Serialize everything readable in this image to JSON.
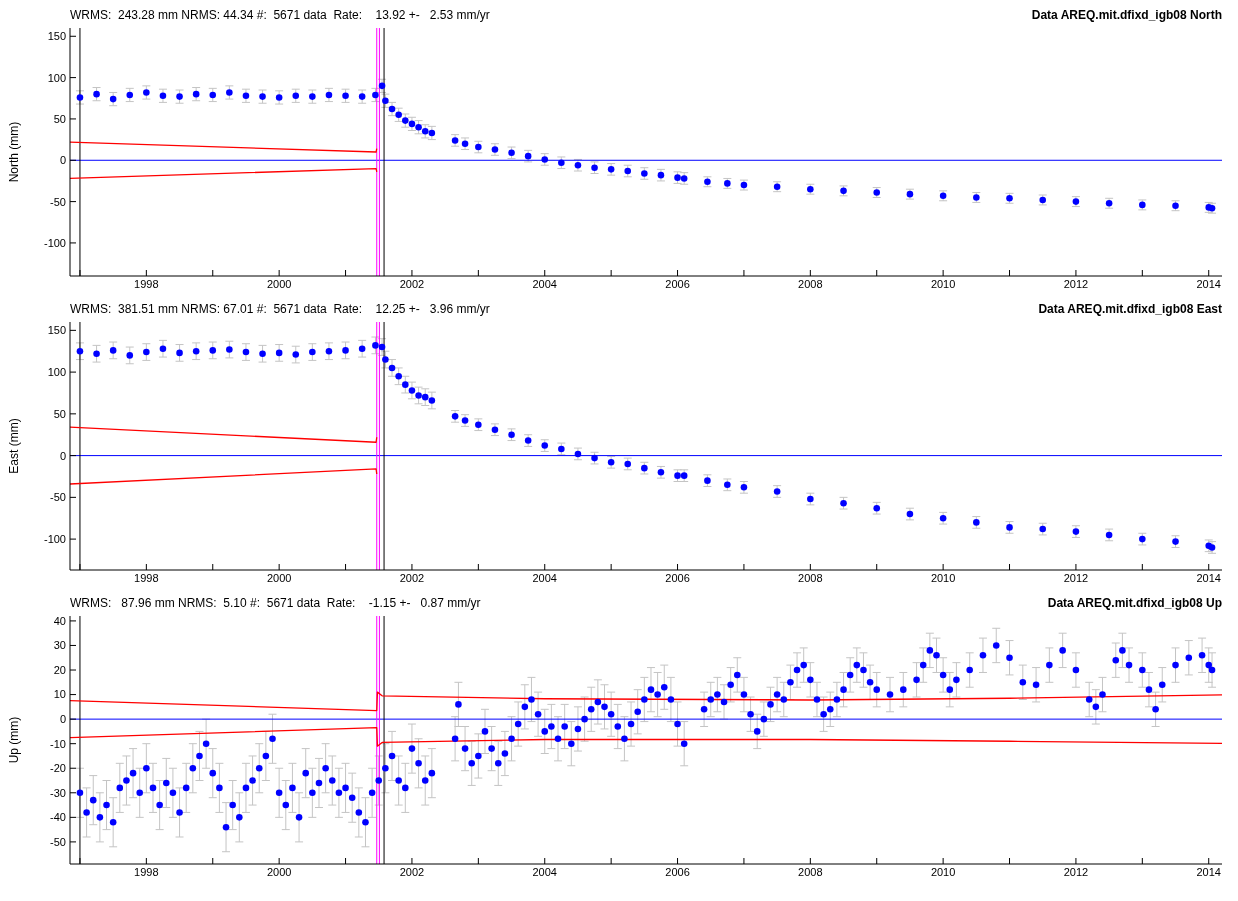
{
  "chart_data": [
    {
      "type": "scatter",
      "title": "Data AREQ.mit.dfixd_igb08 North",
      "subtitle": "WRMS:  243.28 mm NRMS: 44.34 #:  5671 data  Rate:    13.92 +-   2.53 mm/yr",
      "ylabel": "North (mm)",
      "xlim": [
        1996.85,
        2014.2
      ],
      "xticks": [
        {
          "value": 1997,
          "label": null
        },
        1998,
        {
          "value": 1999,
          "label": null
        },
        2000,
        {
          "value": 2001,
          "label": null
        },
        2002,
        {
          "value": 2003,
          "label": null
        },
        2004,
        {
          "value": 2005,
          "label": null
        },
        2006,
        {
          "value": 2007,
          "label": null
        },
        2008,
        {
          "value": 2009,
          "label": null
        },
        2010,
        {
          "value": 2011,
          "label": null
        },
        2012,
        {
          "value": 2013,
          "label": null
        },
        2014
      ],
      "ylim": [
        -140,
        160
      ],
      "yticks": [
        -100,
        -50,
        0,
        50,
        100,
        150
      ],
      "series": [
        {
          "color": "#0000ff",
          "x": [
            1997.0,
            1997.25,
            1997.5,
            1997.75,
            1998.0,
            1998.25,
            1998.5,
            1998.75,
            1999.0,
            1999.25,
            1999.5,
            1999.75,
            2000.0,
            2000.25,
            2000.5,
            2000.75,
            2001.0,
            2001.25,
            2001.45,
            2001.55,
            2001.6,
            2001.7,
            2001.8,
            2001.9,
            2002.0,
            2002.1,
            2002.2,
            2002.3,
            2002.65,
            2002.8,
            2003.0,
            2003.25,
            2003.5,
            2003.75,
            2004.0,
            2004.25,
            2004.5,
            2004.75,
            2005.0,
            2005.25,
            2005.5,
            2005.75,
            2006.0,
            2006.1,
            2006.45,
            2006.75,
            2007.0,
            2007.5,
            2008.0,
            2008.5,
            2009.0,
            2009.5,
            2010.0,
            2010.5,
            2011.0,
            2011.5,
            2012.0,
            2012.5,
            2013.0,
            2013.5,
            2014.0,
            2014.05
          ],
          "values": [
            76,
            80,
            74,
            79,
            82,
            78,
            77,
            80,
            79,
            82,
            78,
            77,
            76,
            78,
            77,
            79,
            78,
            77,
            79,
            90,
            72,
            62,
            55,
            48,
            44,
            40,
            35,
            33,
            24,
            20,
            16,
            13,
            9,
            5,
            1,
            -3,
            -6,
            -9,
            -11,
            -13,
            -16,
            -18,
            -21,
            -22,
            -26,
            -28,
            -30,
            -32,
            -35,
            -37,
            -39,
            -41,
            -43,
            -45,
            -46,
            -48,
            -50,
            -52,
            -54,
            -55,
            -57,
            -58
          ],
          "errors": [
            8,
            8,
            8,
            8,
            8,
            8,
            8,
            8,
            8,
            8,
            8,
            8,
            8,
            8,
            8,
            8,
            8,
            8,
            8,
            8,
            8,
            8,
            8,
            8,
            8,
            8,
            8,
            8,
            7,
            7,
            7,
            7,
            7,
            7,
            7,
            7,
            7,
            7,
            7,
            7,
            7,
            7,
            7,
            7,
            6,
            6,
            6,
            6,
            6,
            6,
            6,
            6,
            6,
            6,
            6,
            6,
            6,
            6,
            6,
            6,
            6,
            6
          ],
          "marker": "circle"
        },
        {
          "type": "line",
          "color": "#ff0000",
          "x": [
            1996.85,
            2001.46,
            2001.47
          ],
          "values": [
            22,
            10,
            14
          ]
        },
        {
          "type": "line",
          "color": "#ff0000",
          "x": [
            1996.85,
            2001.46,
            2001.47
          ],
          "values": [
            -22,
            -10,
            -14
          ]
        }
      ],
      "ref_lines": [
        {
          "axis": "y",
          "value": 0,
          "color": "#0000ff"
        },
        {
          "axis": "x",
          "value": 1997.0,
          "color": "#000000"
        },
        {
          "axis": "x",
          "value": 2001.47,
          "color": "#ff00ff"
        },
        {
          "axis": "x",
          "value": 2001.51,
          "color": "#ff00ff"
        },
        {
          "axis": "x",
          "value": 2001.58,
          "color": "#000000"
        }
      ]
    },
    {
      "type": "scatter",
      "title": "Data AREQ.mit.dfixd_igb08 East",
      "subtitle": "WRMS:  381.51 mm NRMS: 67.01 #:  5671 data  Rate:    12.25 +-   3.96 mm/yr",
      "ylabel": "East  (mm)",
      "xlim": [
        1996.85,
        2014.2
      ],
      "xticks": [
        {
          "value": 1997,
          "label": null
        },
        1998,
        {
          "value": 1999,
          "label": null
        },
        2000,
        {
          "value": 2001,
          "label": null
        },
        2002,
        {
          "value": 2003,
          "label": null
        },
        2004,
        {
          "value": 2005,
          "label": null
        },
        2006,
        {
          "value": 2007,
          "label": null
        },
        2008,
        {
          "value": 2009,
          "label": null
        },
        2010,
        {
          "value": 2011,
          "label": null
        },
        2012,
        {
          "value": 2013,
          "label": null
        },
        2014
      ],
      "ylim": [
        -137,
        160
      ],
      "yticks": [
        -100,
        -50,
        0,
        50,
        100,
        150
      ],
      "series": [
        {
          "color": "#0000ff",
          "x": [
            1997.0,
            1997.25,
            1997.5,
            1997.75,
            1998.0,
            1998.25,
            1998.5,
            1998.75,
            1999.0,
            1999.25,
            1999.5,
            1999.75,
            2000.0,
            2000.25,
            2000.5,
            2000.75,
            2001.0,
            2001.25,
            2001.45,
            2001.55,
            2001.6,
            2001.7,
            2001.8,
            2001.9,
            2002.0,
            2002.1,
            2002.2,
            2002.3,
            2002.65,
            2002.8,
            2003.0,
            2003.25,
            2003.5,
            2003.75,
            2004.0,
            2004.25,
            2004.5,
            2004.75,
            2005.0,
            2005.25,
            2005.5,
            2005.75,
            2006.0,
            2006.1,
            2006.45,
            2006.75,
            2007.0,
            2007.5,
            2008.0,
            2008.5,
            2009.0,
            2009.5,
            2010.0,
            2010.5,
            2011.0,
            2011.5,
            2012.0,
            2012.5,
            2013.0,
            2013.5,
            2014.0,
            2014.05
          ],
          "values": [
            125,
            122,
            126,
            120,
            124,
            128,
            123,
            125,
            126,
            127,
            124,
            122,
            123,
            121,
            124,
            125,
            126,
            128,
            132,
            130,
            115,
            105,
            95,
            85,
            78,
            72,
            70,
            66,
            47,
            42,
            37,
            31,
            25,
            18,
            12,
            8,
            2,
            -3,
            -8,
            -10,
            -15,
            -20,
            -24,
            -24,
            -30,
            -35,
            -38,
            -43,
            -52,
            -57,
            -63,
            -70,
            -75,
            -80,
            -86,
            -88,
            -91,
            -95,
            -100,
            -103,
            -108,
            -110
          ],
          "errors": [
            10,
            10,
            10,
            10,
            10,
            10,
            10,
            10,
            10,
            10,
            10,
            10,
            10,
            10,
            10,
            10,
            10,
            10,
            10,
            10,
            10,
            10,
            10,
            10,
            10,
            10,
            10,
            10,
            7,
            7,
            7,
            7,
            7,
            7,
            7,
            7,
            7,
            7,
            7,
            7,
            7,
            7,
            7,
            7,
            7,
            7,
            7,
            7,
            7,
            7,
            7,
            7,
            7,
            7,
            7,
            7,
            7,
            7,
            7,
            7,
            7,
            7
          ],
          "marker": "circle"
        },
        {
          "type": "line",
          "color": "#ff0000",
          "x": [
            1996.85,
            2001.46,
            2001.47
          ],
          "values": [
            34,
            16,
            22
          ]
        },
        {
          "type": "line",
          "color": "#ff0000",
          "x": [
            1996.85,
            2001.46,
            2001.47
          ],
          "values": [
            -34,
            -16,
            -22
          ]
        }
      ],
      "ref_lines": [
        {
          "axis": "y",
          "value": 0,
          "color": "#0000ff"
        },
        {
          "axis": "x",
          "value": 1997.0,
          "color": "#000000"
        },
        {
          "axis": "x",
          "value": 2001.47,
          "color": "#ff00ff"
        },
        {
          "axis": "x",
          "value": 2001.51,
          "color": "#ff00ff"
        },
        {
          "axis": "x",
          "value": 2001.58,
          "color": "#000000"
        }
      ]
    },
    {
      "type": "scatter",
      "title": "Data AREQ.mit.dfixd_igb08 Up",
      "subtitle": "WRMS:   87.96 mm NRMS:  5.10 #:  5671 data  Rate:    -1.15 +-   0.87 mm/yr",
      "ylabel": "Up  (mm)",
      "xlim": [
        1996.85,
        2014.2
      ],
      "xticks": [
        {
          "value": 1997,
          "label": null
        },
        1998,
        {
          "value": 1999,
          "label": null
        },
        2000,
        {
          "value": 2001,
          "label": null
        },
        2002,
        {
          "value": 2003,
          "label": null
        },
        2004,
        {
          "value": 2005,
          "label": null
        },
        2006,
        {
          "value": 2007,
          "label": null
        },
        2008,
        {
          "value": 2009,
          "label": null
        },
        2010,
        {
          "value": 2011,
          "label": null
        },
        2012,
        {
          "value": 2013,
          "label": null
        },
        2014
      ],
      "ylim": [
        -59,
        42
      ],
      "yticks": [
        -50,
        -40,
        -30,
        -20,
        -10,
        0,
        10,
        20,
        30,
        40
      ],
      "series": [
        {
          "color": "#0000ff",
          "x": [
            1997.0,
            1997.1,
            1997.2,
            1997.3,
            1997.4,
            1997.5,
            1997.6,
            1997.7,
            1997.8,
            1997.9,
            1998.0,
            1998.1,
            1998.2,
            1998.3,
            1998.4,
            1998.5,
            1998.6,
            1998.7,
            1998.8,
            1998.9,
            1999.0,
            1999.1,
            1999.2,
            1999.3,
            1999.4,
            1999.5,
            1999.6,
            1999.7,
            1999.8,
            1999.9,
            2000.0,
            2000.1,
            2000.2,
            2000.3,
            2000.4,
            2000.5,
            2000.6,
            2000.7,
            2000.8,
            2000.9,
            2001.0,
            2001.1,
            2001.2,
            2001.3,
            2001.4,
            2001.5,
            2001.6,
            2001.7,
            2001.8,
            2001.9,
            2002.0,
            2002.1,
            2002.2,
            2002.3,
            2002.65,
            2002.7,
            2002.8,
            2002.9,
            2003.0,
            2003.1,
            2003.2,
            2003.3,
            2003.4,
            2003.5,
            2003.6,
            2003.7,
            2003.8,
            2003.9,
            2004.0,
            2004.1,
            2004.2,
            2004.3,
            2004.4,
            2004.5,
            2004.6,
            2004.7,
            2004.8,
            2004.9,
            2005.0,
            2005.1,
            2005.2,
            2005.3,
            2005.4,
            2005.5,
            2005.6,
            2005.7,
            2005.8,
            2005.9,
            2006.0,
            2006.1,
            2006.4,
            2006.5,
            2006.6,
            2006.7,
            2006.8,
            2006.9,
            2007.0,
            2007.1,
            2007.2,
            2007.3,
            2007.4,
            2007.5,
            2007.6,
            2007.7,
            2007.8,
            2007.9,
            2008.0,
            2008.1,
            2008.2,
            2008.3,
            2008.4,
            2008.5,
            2008.6,
            2008.7,
            2008.8,
            2008.9,
            2009.0,
            2009.2,
            2009.4,
            2009.6,
            2009.7,
            2009.8,
            2009.9,
            2010.0,
            2010.1,
            2010.2,
            2010.4,
            2010.6,
            2010.8,
            2011.0,
            2011.2,
            2011.4,
            2011.6,
            2011.8,
            2012.0,
            2012.2,
            2012.3,
            2012.4,
            2012.6,
            2012.7,
            2012.8,
            2013.0,
            2013.1,
            2013.2,
            2013.3,
            2013.5,
            2013.7,
            2013.9,
            2014.0,
            2014.05
          ],
          "values": [
            -30,
            -38,
            -33,
            -40,
            -35,
            -42,
            -28,
            -25,
            -22,
            -30,
            -20,
            -28,
            -35,
            -26,
            -30,
            -38,
            -28,
            -20,
            -15,
            -10,
            -22,
            -28,
            -44,
            -35,
            -40,
            -28,
            -25,
            -20,
            -15,
            -8,
            -30,
            -35,
            -28,
            -40,
            -22,
            -30,
            -26,
            -20,
            -25,
            -30,
            -28,
            -32,
            -38,
            -42,
            -30,
            -25,
            -20,
            -15,
            -25,
            -28,
            -12,
            -18,
            -25,
            -22,
            -8,
            6,
            -12,
            -18,
            -15,
            -5,
            -12,
            -18,
            -14,
            -8,
            -2,
            5,
            8,
            2,
            -5,
            -3,
            -8,
            -3,
            -10,
            -4,
            0,
            4,
            7,
            5,
            2,
            -3,
            -8,
            -2,
            3,
            8,
            12,
            10,
            13,
            8,
            -2,
            -10,
            4,
            8,
            10,
            7,
            14,
            18,
            10,
            2,
            -5,
            0,
            6,
            10,
            8,
            15,
            20,
            22,
            16,
            8,
            2,
            4,
            8,
            12,
            18,
            22,
            20,
            15,
            12,
            10,
            12,
            16,
            22,
            28,
            26,
            18,
            12,
            16,
            20,
            26,
            30,
            25,
            15,
            14,
            22,
            28,
            20,
            8,
            5,
            10,
            24,
            28,
            22,
            20,
            12,
            4,
            14,
            22,
            25,
            26,
            22,
            20
          ],
          "errors": [
            10,
            10,
            10,
            10,
            10,
            10,
            10,
            10,
            10,
            10,
            10,
            10,
            10,
            10,
            10,
            10,
            10,
            10,
            10,
            10,
            10,
            10,
            10,
            10,
            10,
            10,
            10,
            10,
            10,
            10,
            10,
            10,
            10,
            10,
            10,
            10,
            10,
            10,
            10,
            10,
            10,
            10,
            10,
            10,
            10,
            10,
            10,
            10,
            10,
            10,
            10,
            10,
            10,
            10,
            9,
            9,
            9,
            9,
            9,
            9,
            9,
            9,
            9,
            9,
            9,
            9,
            9,
            9,
            9,
            9,
            9,
            9,
            9,
            9,
            9,
            9,
            9,
            9,
            9,
            9,
            9,
            9,
            9,
            9,
            9,
            9,
            9,
            9,
            9,
            9,
            7,
            7,
            7,
            7,
            7,
            7,
            7,
            7,
            7,
            7,
            7,
            7,
            7,
            7,
            7,
            7,
            7,
            7,
            7,
            7,
            7,
            7,
            7,
            7,
            7,
            7,
            7,
            7,
            7,
            7,
            7,
            7,
            7,
            7,
            7,
            7,
            7,
            7,
            7,
            7,
            7,
            7,
            7,
            7,
            7,
            7,
            7,
            7,
            7,
            7,
            7,
            7,
            7,
            7,
            7,
            7,
            7,
            7,
            7,
            7
          ],
          "marker": "circle"
        },
        {
          "type": "line",
          "color": "#ff0000",
          "x": [
            1996.85,
            2001.47,
            2001.48,
            2001.55,
            2004,
            2008,
            2011,
            2014.2
          ],
          "values": [
            7.5,
            3.5,
            11,
            9.5,
            8.3,
            7.8,
            8.5,
            9.9
          ]
        },
        {
          "type": "line",
          "color": "#ff0000",
          "x": [
            1996.85,
            2001.47,
            2001.48,
            2001.55,
            2004,
            2008,
            2011,
            2014.2
          ],
          "values": [
            -7.5,
            -3.5,
            -11,
            -9.5,
            -8.3,
            -8.3,
            -9,
            -9.9
          ]
        }
      ],
      "ref_lines": [
        {
          "axis": "y",
          "value": 0,
          "color": "#0000ff"
        },
        {
          "axis": "x",
          "value": 1997.0,
          "color": "#000000"
        },
        {
          "axis": "x",
          "value": 2001.47,
          "color": "#ff00ff"
        },
        {
          "axis": "x",
          "value": 2001.51,
          "color": "#ff00ff"
        },
        {
          "axis": "x",
          "value": 2001.58,
          "color": "#000000"
        }
      ]
    }
  ]
}
